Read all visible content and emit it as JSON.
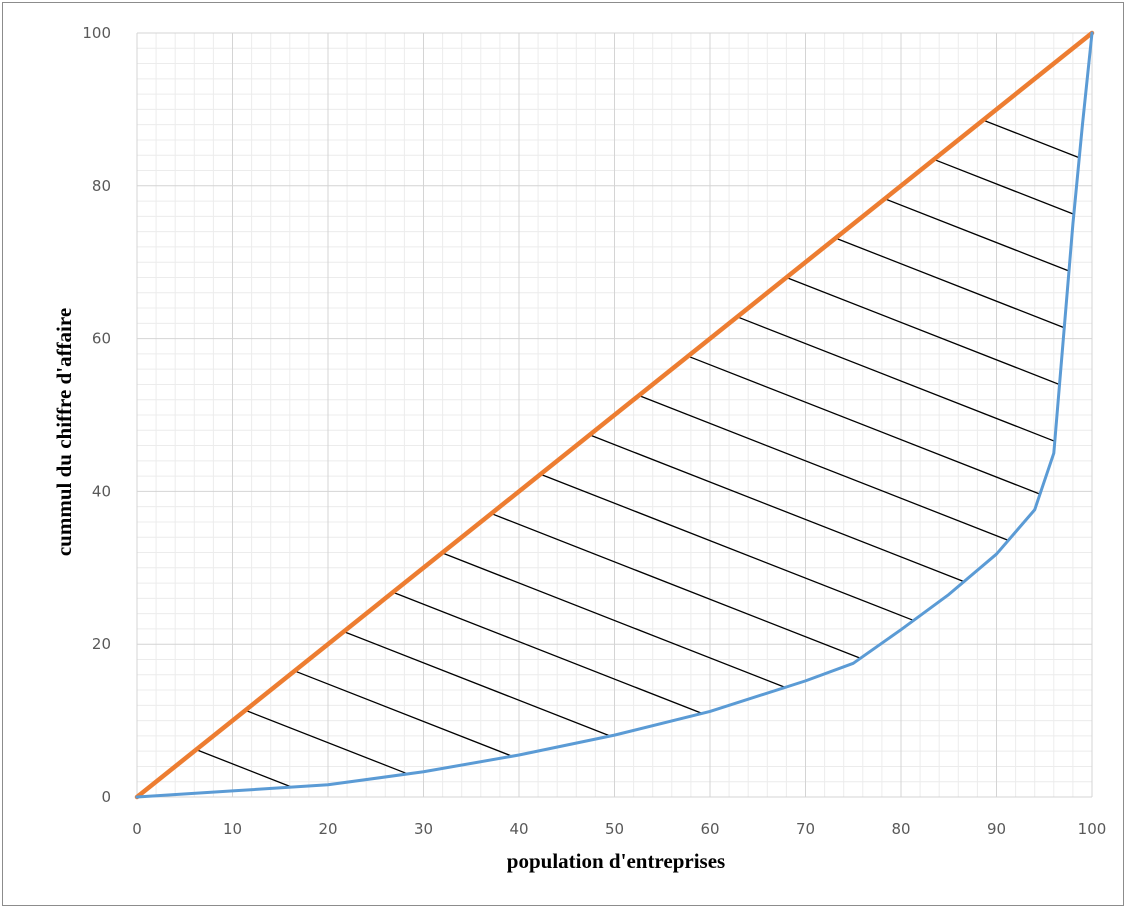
{
  "chart_data": {
    "type": "line",
    "title": "",
    "xlabel": "population d'entreprises",
    "ylabel": "cummul  du chiffre d'affaire",
    "xlim": [
      0,
      100
    ],
    "ylim": [
      0,
      100
    ],
    "x_ticks": [
      "0",
      "10",
      "20",
      "30",
      "40",
      "50",
      "60",
      "70",
      "80",
      "90",
      "100"
    ],
    "y_ticks": [
      "0",
      "20",
      "40",
      "60",
      "80",
      "100"
    ],
    "grid": true,
    "legend": "none",
    "series": [
      {
        "color": "#ed7d31",
        "points": [
          [
            0,
            0
          ],
          [
            100,
            100
          ]
        ]
      },
      {
        "color": "#5b9bd5",
        "points": [
          [
            0,
            0
          ],
          [
            10,
            0.8
          ],
          [
            20,
            1.6
          ],
          [
            30,
            3.3
          ],
          [
            40,
            5.5
          ],
          [
            50,
            8.1
          ],
          [
            60,
            11.2
          ],
          [
            70,
            15.2
          ],
          [
            75,
            17.5
          ],
          [
            80,
            21.9
          ],
          [
            85,
            26.5
          ],
          [
            90,
            31.8
          ],
          [
            94,
            37.6
          ],
          [
            96,
            45
          ],
          [
            97,
            60
          ],
          [
            98,
            75
          ],
          [
            99,
            88
          ],
          [
            100,
            100
          ]
        ]
      }
    ],
    "annotations": {
      "hatch": "black diagonal hatch lines between the two series",
      "hatch_color": "#000000"
    }
  }
}
